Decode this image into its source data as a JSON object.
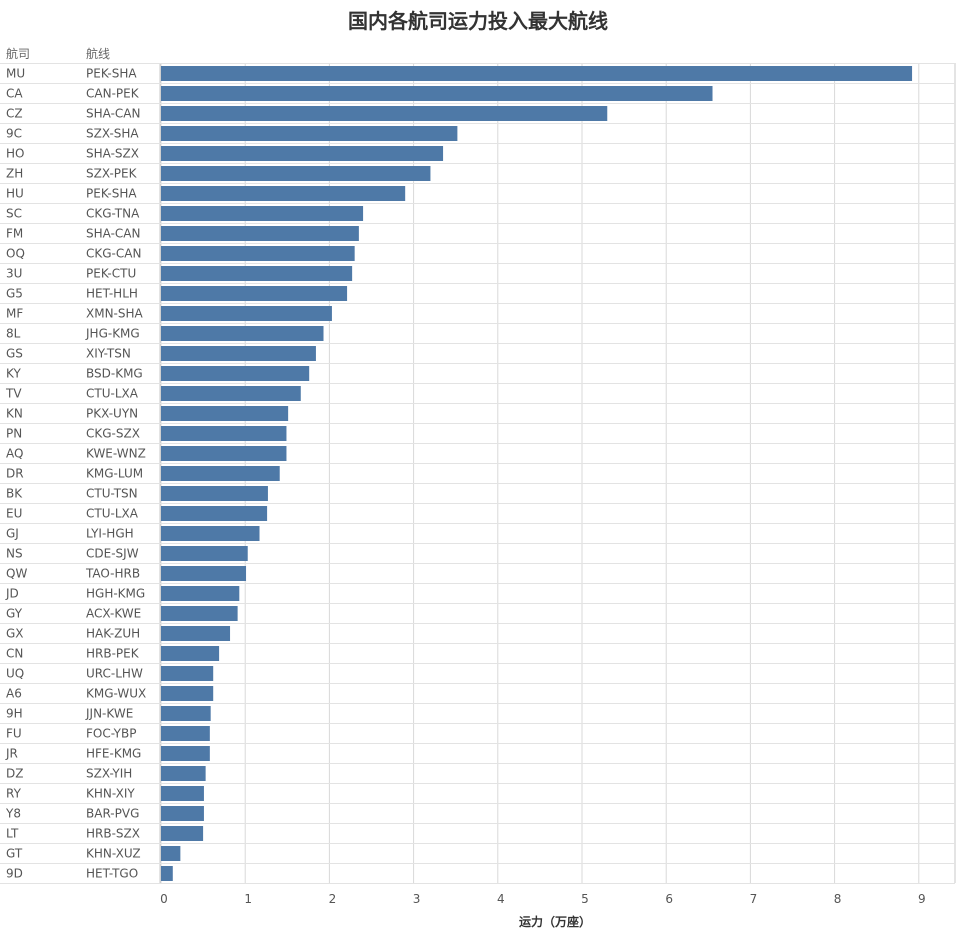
{
  "chart_data": {
    "type": "bar",
    "orientation": "horizontal",
    "title": "国内各航司运力投入最大航线",
    "column_headers": {
      "airline": "航司",
      "route": "航线"
    },
    "xlabel": "运力（万座）",
    "xlim": [
      0,
      9.4
    ],
    "xticks": [
      "0",
      "1",
      "2",
      "3",
      "4",
      "5",
      "6",
      "7",
      "8",
      "9"
    ],
    "grid": true,
    "bar_color": "#4e79a7",
    "rows": [
      {
        "airline": "MU",
        "route": "PEK-SHA",
        "value": 8.92
      },
      {
        "airline": "CA",
        "route": "CAN-PEK",
        "value": 6.55
      },
      {
        "airline": "CZ",
        "route": "SHA-CAN",
        "value": 5.3
      },
      {
        "airline": "9C",
        "route": "SZX-SHA",
        "value": 3.52
      },
      {
        "airline": "HO",
        "route": "SHA-SZX",
        "value": 3.35
      },
      {
        "airline": "ZH",
        "route": "SZX-PEK",
        "value": 3.2
      },
      {
        "airline": "HU",
        "route": "PEK-SHA",
        "value": 2.9
      },
      {
        "airline": "SC",
        "route": "CKG-TNA",
        "value": 2.4
      },
      {
        "airline": "FM",
        "route": "SHA-CAN",
        "value": 2.35
      },
      {
        "airline": "OQ",
        "route": "CKG-CAN",
        "value": 2.3
      },
      {
        "airline": "3U",
        "route": "PEK-CTU",
        "value": 2.27
      },
      {
        "airline": "G5",
        "route": "HET-HLH",
        "value": 2.21
      },
      {
        "airline": "MF",
        "route": "XMN-SHA",
        "value": 2.03
      },
      {
        "airline": "8L",
        "route": "JHG-KMG",
        "value": 1.93
      },
      {
        "airline": "GS",
        "route": "XIY-TSN",
        "value": 1.84
      },
      {
        "airline": "KY",
        "route": "BSD-KMG",
        "value": 1.76
      },
      {
        "airline": "TV",
        "route": "CTU-LXA",
        "value": 1.66
      },
      {
        "airline": "KN",
        "route": "PKX-UYN",
        "value": 1.51
      },
      {
        "airline": "PN",
        "route": "CKG-SZX",
        "value": 1.49
      },
      {
        "airline": "AQ",
        "route": "KWE-WNZ",
        "value": 1.49
      },
      {
        "airline": "DR",
        "route": "KMG-LUM",
        "value": 1.41
      },
      {
        "airline": "BK",
        "route": "CTU-TSN",
        "value": 1.27
      },
      {
        "airline": "EU",
        "route": "CTU-LXA",
        "value": 1.26
      },
      {
        "airline": "GJ",
        "route": "LYI-HGH",
        "value": 1.17
      },
      {
        "airline": "NS",
        "route": "CDE-SJW",
        "value": 1.03
      },
      {
        "airline": "QW",
        "route": "TAO-HRB",
        "value": 1.01
      },
      {
        "airline": "JD",
        "route": "HGH-KMG",
        "value": 0.93
      },
      {
        "airline": "GY",
        "route": "ACX-KWE",
        "value": 0.91
      },
      {
        "airline": "GX",
        "route": "HAK-ZUH",
        "value": 0.82
      },
      {
        "airline": "CN",
        "route": "HRB-PEK",
        "value": 0.69
      },
      {
        "airline": "UQ",
        "route": "URC-LHW",
        "value": 0.62
      },
      {
        "airline": "A6",
        "route": "KMG-WUX",
        "value": 0.62
      },
      {
        "airline": "9H",
        "route": "JJN-KWE",
        "value": 0.59
      },
      {
        "airline": "FU",
        "route": "FOC-YBP",
        "value": 0.58
      },
      {
        "airline": "JR",
        "route": "HFE-KMG",
        "value": 0.58
      },
      {
        "airline": "DZ",
        "route": "SZX-YIH",
        "value": 0.53
      },
      {
        "airline": "RY",
        "route": "KHN-XIY",
        "value": 0.51
      },
      {
        "airline": "Y8",
        "route": "BAR-PVG",
        "value": 0.51
      },
      {
        "airline": "LT",
        "route": "HRB-SZX",
        "value": 0.5
      },
      {
        "airline": "GT",
        "route": "KHN-XUZ",
        "value": 0.23
      },
      {
        "airline": "9D",
        "route": "HET-TGO",
        "value": 0.14
      }
    ]
  }
}
